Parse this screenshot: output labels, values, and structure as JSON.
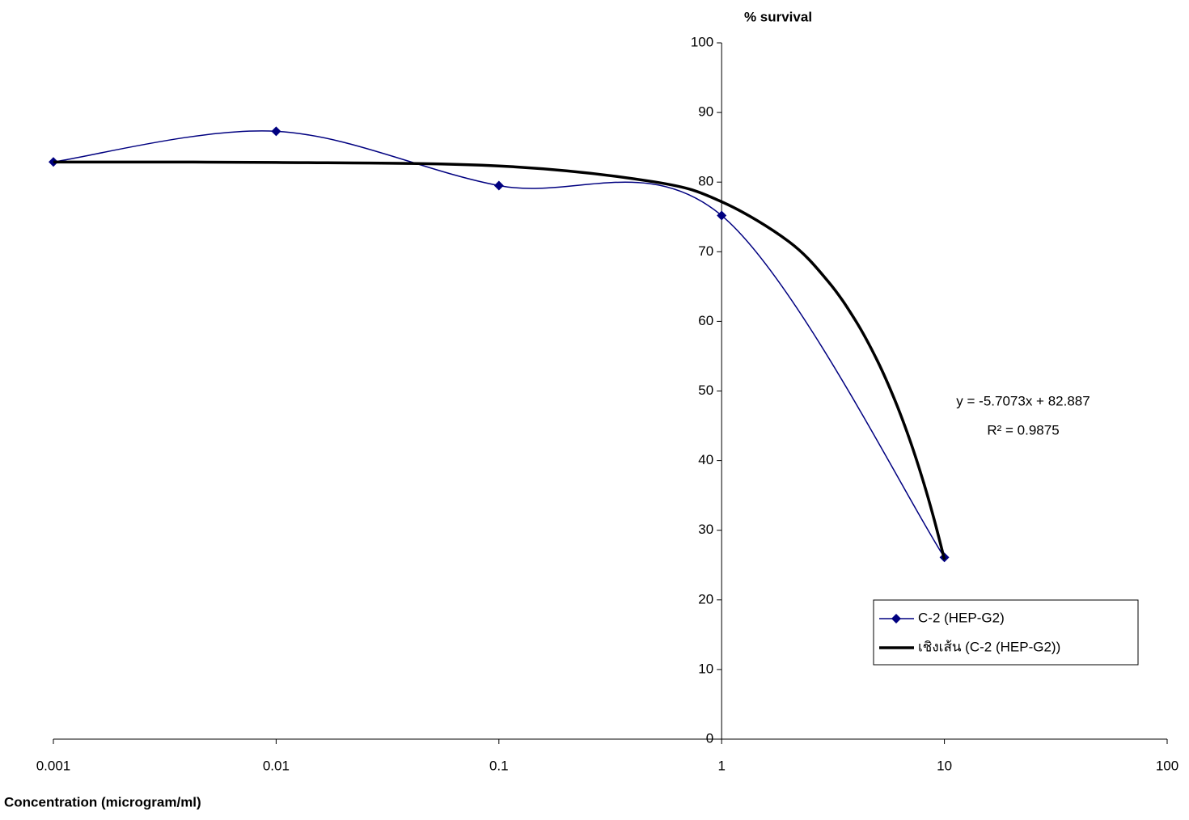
{
  "chart_data": {
    "type": "line",
    "y_title": "% survival",
    "x_title": "Concentration (microgram/ml)",
    "x_log": true,
    "y_axis_crosses_at": 1,
    "xlim": [
      0.001,
      100
    ],
    "xticks": [
      0.001,
      0.01,
      0.1,
      1,
      10,
      100
    ],
    "ylim": [
      0,
      100
    ],
    "yticks": [
      0,
      10,
      20,
      30,
      40,
      50,
      60,
      70,
      80,
      90,
      100
    ],
    "series": [
      {
        "name": "C-2 (HEP-G2)",
        "color": "#000080",
        "smooth": true,
        "marker": "diamond",
        "x": [
          0.001,
          0.01,
          0.1,
          1,
          10
        ],
        "values": [
          82.9,
          87.3,
          79.5,
          75.2,
          26.1
        ]
      },
      {
        "name": "เชิงเส้น (C-2 (HEP-G2))",
        "color": "#000000",
        "smooth": true,
        "marker": "none",
        "x": [
          0.001,
          0.01,
          0.1,
          0.5,
          1,
          2,
          3,
          4,
          5,
          6,
          7,
          8,
          9,
          10
        ],
        "values": [
          82.88,
          82.83,
          82.32,
          80.03,
          77.18,
          71.47,
          65.77,
          60.06,
          54.35,
          48.64,
          42.94,
          37.23,
          31.52,
          25.81
        ]
      }
    ],
    "annotations": [
      "y = -5.7073x + 82.887",
      "R² = 0.9875"
    ],
    "legend": "lower-right"
  }
}
